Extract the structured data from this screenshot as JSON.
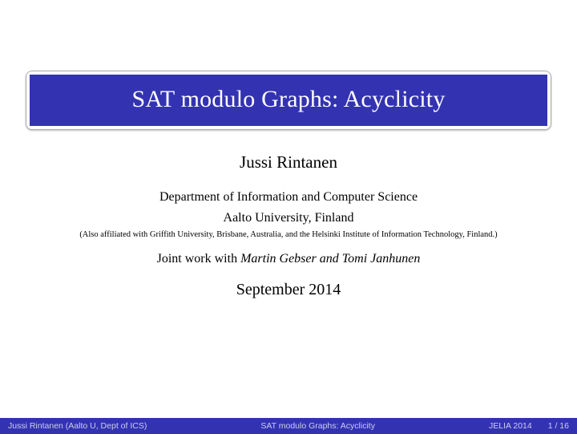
{
  "colors": {
    "accent": "#3333b2",
    "page_bg": "#ffffff",
    "footer_text": "#ccccf0",
    "title_text": "#ffffff",
    "body_text": "#000000"
  },
  "title": "SAT modulo Graphs: Acyclicity",
  "author": "Jussi Rintanen",
  "department_line1": "Department of Information and Computer Science",
  "department_line2": "Aalto University, Finland",
  "affiliation_note": "(Also affiliated with Griffith University, Brisbane, Australia, and the Helsinki Institute of Information Technology, Finland.)",
  "joint_prefix": "Joint work with ",
  "joint_names": "Martin Gebser and Tomi Janhunen",
  "date": "September 2014",
  "footer": {
    "left": "Jussi Rintanen  (Aalto U, Dept of ICS)",
    "center": "SAT modulo Graphs: Acyclicity",
    "venue": "JELIA 2014",
    "page": "1 / 16"
  }
}
